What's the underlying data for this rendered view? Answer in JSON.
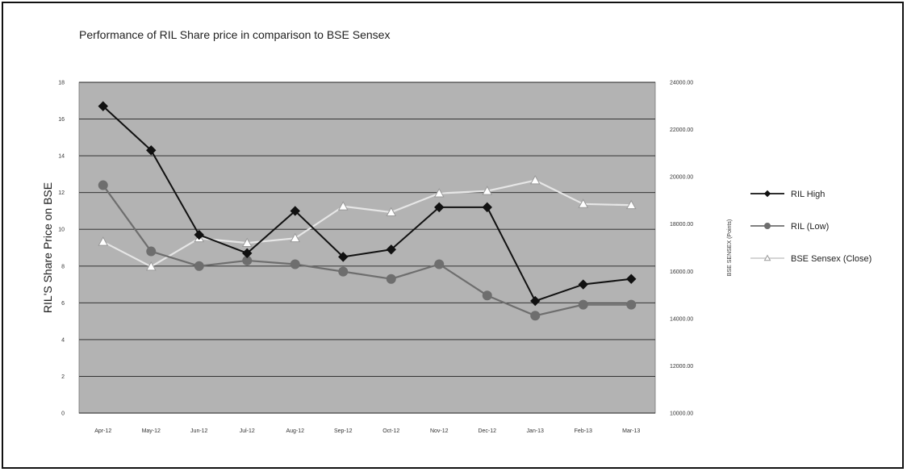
{
  "chart_data": {
    "type": "line",
    "title": "Performance of RIL Share price in comparison to BSE Sensex",
    "categories": [
      "Apr-12",
      "May-12",
      "Jun-12",
      "Jul-12",
      "Aug-12",
      "Sep-12",
      "Oct-12",
      "Nov-12",
      "Dec-12",
      "Jan-13",
      "Feb-13",
      "Mar-13"
    ],
    "ylabel": "RIL'S Share Price on BSE",
    "ylabel_right": "BSE SENSEX (Points)",
    "ylim": [
      0,
      18
    ],
    "ylim_right": [
      10000,
      24000
    ],
    "yticks": [
      "0",
      "2",
      "4",
      "6",
      "8",
      "10",
      "12",
      "14",
      "16",
      "18"
    ],
    "yticks_right": [
      "10000.00",
      "12000.00",
      "14000.00",
      "16000.00",
      "18000.00",
      "20000.00",
      "22000.00",
      "24000.00"
    ],
    "grid": true,
    "legend_position": "right",
    "series": [
      {
        "name": "RIL High",
        "axis": "left",
        "color": "#111111",
        "marker": "diamond",
        "values": [
          16.7,
          14.3,
          9.7,
          8.7,
          11.0,
          8.5,
          8.9,
          11.2,
          11.2,
          6.1,
          7.0,
          7.3
        ]
      },
      {
        "name": "RIL (Low)",
        "axis": "left",
        "color": "#6e6e6e",
        "marker": "circle",
        "values": [
          12.4,
          8.8,
          8.0,
          8.3,
          8.1,
          7.7,
          7.3,
          8.1,
          6.4,
          5.3,
          5.9,
          5.9
        ]
      },
      {
        "name": "BSE Sensex (Close)",
        "axis": "right",
        "color": "#e6e6e6",
        "marker": "triangle",
        "values": [
          17250,
          16200,
          17400,
          17200,
          17400,
          18750,
          18500,
          19300,
          19400,
          19850,
          18850,
          18800
        ]
      }
    ]
  }
}
